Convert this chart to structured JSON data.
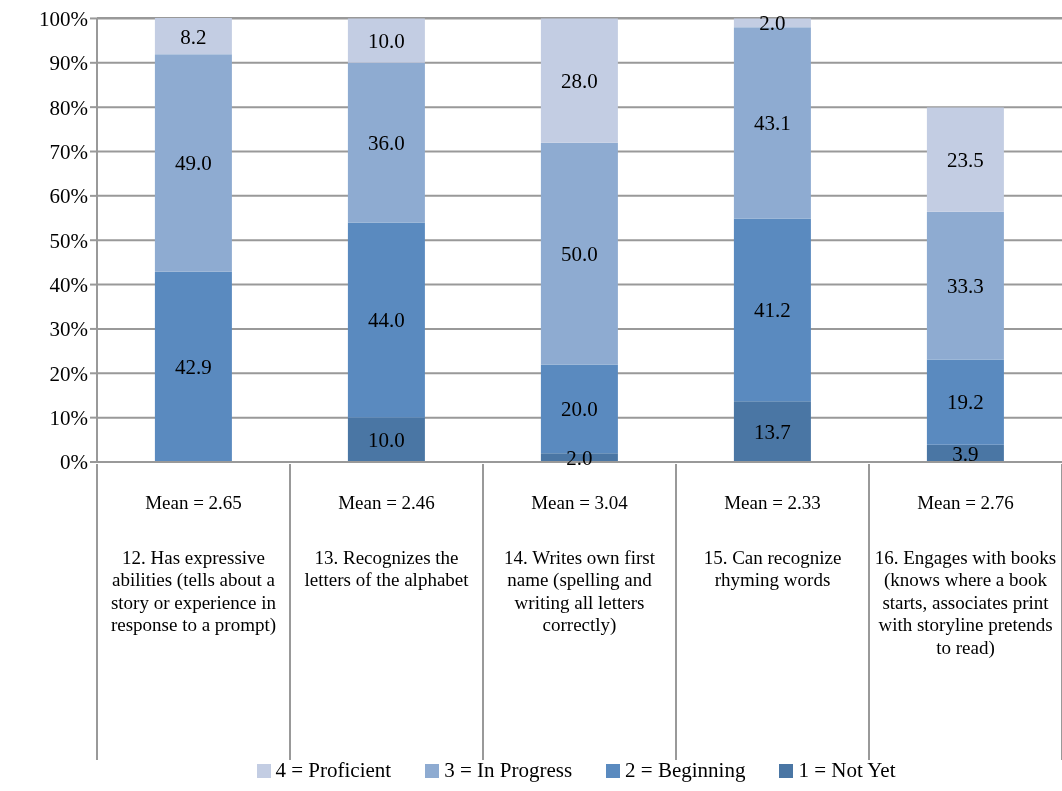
{
  "chart_data": {
    "type": "bar",
    "stacked": true,
    "categories": [
      "12. Has expressive abilities (tells about a story or experience in response to a prompt)",
      "13. Recognizes the letters of the alphabet",
      "14. Writes own first name (spelling and writing all letters correctly)",
      "15. Can recognize rhyming words",
      "16. Engages with books (knows where a book starts, associates print with storyline pretends to read)"
    ],
    "series": [
      {
        "name": "1 = Not Yet",
        "color": "#4a76a4",
        "values": [
          null,
          10.0,
          2.0,
          13.7,
          3.9
        ],
        "value_labels": [
          null,
          "10.0",
          "2.0",
          "13.7",
          "3.9"
        ]
      },
      {
        "name": "2 =  Beginning",
        "color": "#5a8abf",
        "values": [
          42.9,
          44.0,
          20.0,
          41.2,
          19.2
        ],
        "value_labels": [
          "42.9",
          "44.0",
          "20.0",
          "41.2",
          "19.2"
        ]
      },
      {
        "name": "3 = In Progress",
        "color": "#8eabd1",
        "values": [
          49.0,
          36.0,
          50.0,
          43.1,
          33.3
        ],
        "value_labels": [
          "49.0",
          "36.0",
          "50.0",
          "43.1",
          "33.3"
        ]
      },
      {
        "name": "4 = Proficient",
        "color": "#c3cde3",
        "values": [
          8.2,
          10.0,
          28.0,
          2.0,
          23.5
        ],
        "value_labels": [
          "8.2",
          "10.0",
          "28.0",
          "2.0",
          "23.5"
        ]
      }
    ],
    "ylim": [
      0,
      100.1
    ],
    "yticks": [
      {
        "value": 0,
        "label": "0%"
      },
      {
        "value": 10,
        "label": "10%"
      },
      {
        "value": 20,
        "label": "20%"
      },
      {
        "value": 30,
        "label": "30%"
      },
      {
        "value": 40,
        "label": "40%"
      },
      {
        "value": 50,
        "label": "50%"
      },
      {
        "value": 60,
        "label": "60%"
      },
      {
        "value": 70,
        "label": "70%"
      },
      {
        "value": 80,
        "label": "80%"
      },
      {
        "value": 90,
        "label": "90%"
      },
      {
        "value": 100,
        "label": "100%"
      }
    ],
    "grid": "y",
    "legend": "bottom",
    "annotations": [
      "Mean = 2.65",
      "Mean = 2.46",
      "Mean = 3.04",
      "Mean = 2.33",
      "Mean = 2.76"
    ]
  }
}
